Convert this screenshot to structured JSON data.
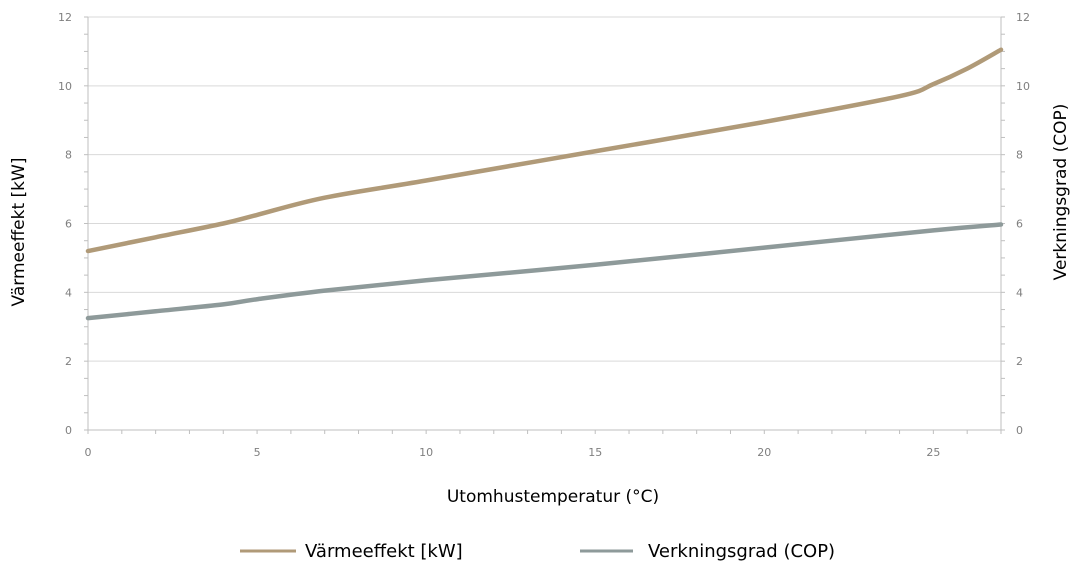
{
  "chart_data": {
    "type": "line",
    "xlabel": "Utomhustemperatur (°C)",
    "ylabel_left": "Värmeeffekt [kW]",
    "ylabel_right": "Verkningsgrad (COP)",
    "xlim": [
      0,
      27
    ],
    "ylim_left": [
      0,
      12
    ],
    "ylim_right": [
      0,
      12
    ],
    "x_ticks": [
      0,
      5,
      10,
      15,
      20,
      25
    ],
    "y_ticks": [
      0,
      2,
      4,
      6,
      8,
      10,
      12
    ],
    "grid": "horizontal",
    "legend_position": "bottom",
    "series": [
      {
        "name": "Värmeeffekt [kW]",
        "axis": "left",
        "color": "#b09a78",
        "x": [
          0,
          2,
          4,
          5,
          7,
          10,
          15,
          20,
          24,
          25,
          26,
          27
        ],
        "y": [
          5.2,
          5.6,
          6.0,
          6.25,
          6.75,
          7.25,
          8.1,
          8.95,
          9.7,
          10.05,
          10.5,
          11.05
        ]
      },
      {
        "name": "Verkningsgrad (COP)",
        "axis": "right",
        "color": "#8e9a9a",
        "x": [
          0,
          2,
          4,
          5,
          7,
          10,
          15,
          20,
          25,
          27
        ],
        "y": [
          3.25,
          3.45,
          3.65,
          3.8,
          4.05,
          4.35,
          4.8,
          5.3,
          5.8,
          5.97
        ]
      }
    ]
  }
}
